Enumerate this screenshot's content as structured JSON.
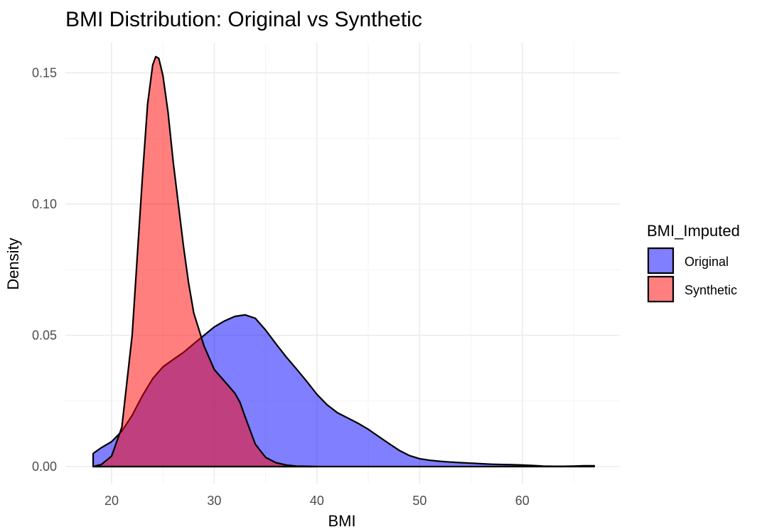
{
  "chart_data": {
    "type": "area",
    "title": "BMI Distribution: Original vs Synthetic",
    "xlabel": "BMI",
    "ylabel": "Density",
    "xlim": [
      15.5,
      69.5
    ],
    "ylim": [
      -0.0065,
      0.1615
    ],
    "x_ticks": [
      20,
      30,
      40,
      50,
      60
    ],
    "x_tick_labels": [
      "20",
      "30",
      "40",
      "50",
      "60"
    ],
    "y_ticks": [
      0.0,
      0.05,
      0.1,
      0.15
    ],
    "y_tick_labels": [
      "0.00",
      "0.05",
      "0.10",
      "0.15"
    ],
    "grid": true,
    "legend": {
      "title": "BMI_Imputed",
      "position": "right"
    },
    "series": [
      {
        "name": "Original",
        "color": "#0000ff",
        "points": [
          [
            18.2,
            0.005
          ],
          [
            19.0,
            0.0072
          ],
          [
            20.0,
            0.0095
          ],
          [
            21.0,
            0.0135
          ],
          [
            22.0,
            0.0195
          ],
          [
            23.0,
            0.027
          ],
          [
            24.0,
            0.0335
          ],
          [
            25.0,
            0.038
          ],
          [
            26.0,
            0.0408
          ],
          [
            27.0,
            0.0435
          ],
          [
            28.0,
            0.0468
          ],
          [
            29.0,
            0.05
          ],
          [
            30.0,
            0.0532
          ],
          [
            31.0,
            0.0555
          ],
          [
            32.0,
            0.0572
          ],
          [
            33.0,
            0.0578
          ],
          [
            34.0,
            0.0565
          ],
          [
            35.0,
            0.052
          ],
          [
            36.0,
            0.0468
          ],
          [
            37.0,
            0.0418
          ],
          [
            38.0,
            0.0372
          ],
          [
            39.0,
            0.0325
          ],
          [
            40.0,
            0.0275
          ],
          [
            41.0,
            0.0235
          ],
          [
            42.0,
            0.0205
          ],
          [
            43.0,
            0.0185
          ],
          [
            44.0,
            0.0165
          ],
          [
            45.0,
            0.0142
          ],
          [
            46.0,
            0.0115
          ],
          [
            47.0,
            0.0088
          ],
          [
            48.0,
            0.0062
          ],
          [
            49.0,
            0.0042
          ],
          [
            50.0,
            0.003
          ],
          [
            51.0,
            0.0024
          ],
          [
            52.0,
            0.002
          ],
          [
            53.0,
            0.0017
          ],
          [
            54.0,
            0.0015
          ],
          [
            55.0,
            0.0013
          ],
          [
            56.0,
            0.0011
          ],
          [
            57.0,
            0.0009
          ],
          [
            58.0,
            0.0008
          ],
          [
            59.0,
            0.0007
          ],
          [
            60.0,
            0.0006
          ],
          [
            61.0,
            0.0004
          ],
          [
            62.0,
            0.0002
          ],
          [
            63.0,
            0.0001
          ],
          [
            64.0,
            0.0001
          ],
          [
            65.0,
            0.0002
          ],
          [
            66.0,
            0.0003
          ],
          [
            67.0,
            0.0003
          ]
        ]
      },
      {
        "name": "Synthetic",
        "color": "#ff0000",
        "points": [
          [
            18.2,
            0.0
          ],
          [
            19.0,
            0.0008
          ],
          [
            20.0,
            0.004
          ],
          [
            21.0,
            0.015
          ],
          [
            22.0,
            0.05
          ],
          [
            22.5,
            0.08
          ],
          [
            23.0,
            0.11
          ],
          [
            23.5,
            0.138
          ],
          [
            24.0,
            0.153
          ],
          [
            24.3,
            0.1562
          ],
          [
            24.6,
            0.1555
          ],
          [
            25.0,
            0.149
          ],
          [
            25.5,
            0.135
          ],
          [
            26.0,
            0.116
          ],
          [
            26.5,
            0.1
          ],
          [
            27.0,
            0.084
          ],
          [
            27.5,
            0.07
          ],
          [
            28.0,
            0.0585
          ],
          [
            29.0,
            0.046
          ],
          [
            30.0,
            0.037
          ],
          [
            31.0,
            0.0325
          ],
          [
            32.0,
            0.028
          ],
          [
            32.5,
            0.0245
          ],
          [
            33.0,
            0.019
          ],
          [
            34.0,
            0.0085
          ],
          [
            35.0,
            0.0035
          ],
          [
            36.0,
            0.0015
          ],
          [
            37.0,
            0.0006
          ],
          [
            38.0,
            0.0002
          ],
          [
            39.0,
            0.0001
          ],
          [
            40.0,
            0.0
          ]
        ]
      }
    ]
  }
}
